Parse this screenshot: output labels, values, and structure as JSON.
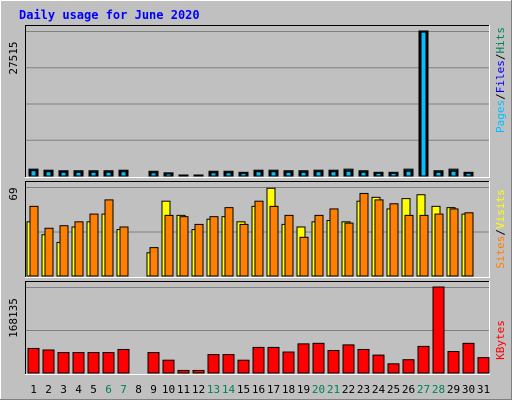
{
  "chart_data": {
    "type": "bar",
    "title": "Daily usage for June 2020",
    "categories": [
      "1",
      "2",
      "3",
      "4",
      "5",
      "6",
      "7",
      "8",
      "9",
      "10",
      "11",
      "12",
      "13",
      "14",
      "15",
      "16",
      "17",
      "18",
      "19",
      "20",
      "21",
      "22",
      "23",
      "24",
      "25",
      "26",
      "27",
      "28",
      "29",
      "30",
      "31"
    ],
    "weekend_days": [
      "6",
      "7",
      "13",
      "14",
      "20",
      "21",
      "27",
      "28"
    ],
    "panels": {
      "top": {
        "ymax_label": "27515",
        "ymax": 27515,
        "series": [
          {
            "name": "Hits",
            "color": "#00805c",
            "values": [
              1300,
              1100,
              1000,
              1000,
              1000,
              1000,
              1100,
              0,
              900,
              600,
              100,
              100,
              900,
              900,
              700,
              1100,
              1100,
              1000,
              1000,
              1100,
              1100,
              1300,
              1000,
              700,
              700,
              1300,
              27515,
              1000,
              1300,
              700,
              0
            ]
          },
          {
            "name": "Files",
            "color": "#0000ff",
            "values": [
              1100,
              900,
              900,
              800,
              800,
              800,
              900,
              0,
              700,
              500,
              80,
              80,
              700,
              700,
              600,
              900,
              900,
              800,
              800,
              900,
              900,
              1000,
              800,
              600,
              600,
              1000,
              27400,
              800,
              1000,
              600,
              0
            ]
          },
          {
            "name": "Pages",
            "color": "#00c0ff",
            "values": [
              1000,
              800,
              700,
              700,
              700,
              700,
              800,
              0,
              600,
              400,
              60,
              60,
              600,
              600,
              500,
              800,
              800,
              700,
              700,
              800,
              800,
              900,
              700,
              500,
              500,
              900,
              27300,
              700,
              900,
              500,
              0
            ]
          }
        ],
        "legend_label_order": [
          "Pages",
          "Files",
          "Hits"
        ],
        "separators": [
          "/",
          "/"
        ]
      },
      "middle": {
        "ymax_label": "69",
        "ymax": 69,
        "series": [
          {
            "name": "Visits",
            "color": "#ffff00",
            "values": [
              42,
              32,
              26,
              38,
              42,
              48,
              36,
              0,
              18,
              58,
              47,
              36,
              44,
              46,
              42,
              54,
              68,
              40,
              38,
              42,
              43,
              42,
              58,
              61,
              52,
              60,
              63,
              54,
              53,
              48,
              0
            ]
          },
          {
            "name": "Sites",
            "color": "#ff8000",
            "values": [
              54,
              37,
              39,
              42,
              48,
              59,
              38,
              0,
              22,
              47,
              46,
              40,
              46,
              53,
              40,
              58,
              54,
              47,
              30,
              47,
              52,
              41,
              64,
              59,
              56,
              47,
              47,
              48,
              52,
              49,
              0
            ]
          }
        ],
        "legend_label_order": [
          "Sites",
          "Visits"
        ],
        "separators": [
          "/"
        ]
      },
      "bottom": {
        "ymax_label": "168135",
        "ymax": 168135,
        "series": [
          {
            "name": "KBytes",
            "color": "#ff0000",
            "values": [
              48000,
              45000,
              40000,
              40000,
              40000,
              40000,
              46000,
              0,
              40000,
              25000,
              5000,
              5000,
              36000,
              36000,
              25000,
              50000,
              50000,
              41000,
              57000,
              58000,
              44000,
              55000,
              46000,
              35000,
              18000,
              26000,
              52000,
              168135,
              42000,
              58000,
              30000
            ]
          }
        ],
        "legend_label_order": [
          "KBytes"
        ],
        "separators": []
      }
    },
    "colors": {
      "background": "#c0c0c0",
      "title": "#0000ff",
      "weekend_day_label": "#00805c",
      "weekday_label": "#000000"
    }
  }
}
